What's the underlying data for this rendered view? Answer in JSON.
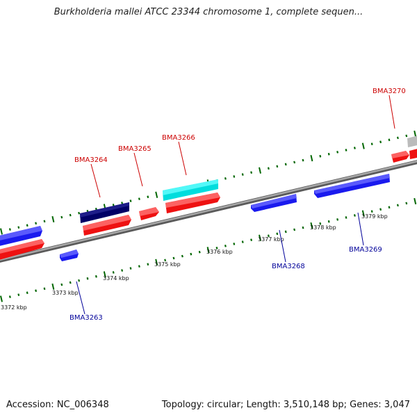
{
  "title": "Burkholderia mallei ATCC 23344 chromosome 1, complete sequen...",
  "footer": {
    "accession": "Accession: NC_006348",
    "summary": "Topology: circular; Length: 3,510,148 bp; Genes: 3,047"
  },
  "colors": {
    "forward_label": "#cc0000",
    "reverse_label": "#000099",
    "tick": "#006600",
    "backbone": "#888888"
  },
  "scale_labels": [
    "3372 kbp",
    "3373 kbp",
    "3374 kbp",
    "3375 kbp",
    "3376 kbp",
    "3377 kbp",
    "3378 kbp",
    "3379 kbp"
  ],
  "genes_forward": [
    {
      "name": "BMA3264"
    },
    {
      "name": "BMA3265"
    },
    {
      "name": "BMA3266"
    },
    {
      "name": "BMA3270"
    }
  ],
  "genes_reverse": [
    {
      "name": "BMA3263"
    },
    {
      "name": "BMA3268"
    },
    {
      "name": "BMA3269"
    }
  ]
}
